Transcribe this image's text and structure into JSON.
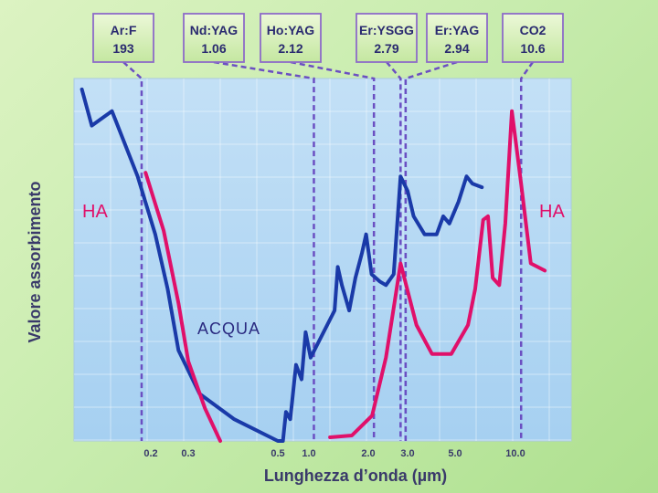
{
  "chart_data": {
    "type": "line",
    "xlabel": "Lunghezza d’onda (µm)",
    "ylabel": "Valore assorbimento",
    "x_ticks": [
      "0.2",
      "0.3",
      "0.5",
      "1.0",
      "2.0",
      "3.0",
      "5.0",
      "10.0"
    ],
    "annotations": [
      {
        "name": "ha_left",
        "text": "HA"
      },
      {
        "name": "ha_right",
        "text": "HA"
      },
      {
        "name": "acqua",
        "text": "ACQUA"
      }
    ],
    "lasers": [
      {
        "name": "Ar:F",
        "value": "193",
        "wavelength_um": 0.193
      },
      {
        "name": "Nd:YAG",
        "value": "1.06",
        "wavelength_um": 1.06
      },
      {
        "name": "Ho:YAG",
        "value": "2.12",
        "wavelength_um": 2.12
      },
      {
        "name": "Er:YSGG",
        "value": "2.79",
        "wavelength_um": 2.79
      },
      {
        "name": "Er:YAG",
        "value": "2.94",
        "wavelength_um": 2.94
      },
      {
        "name": "CO2",
        "value": "10.6",
        "wavelength_um": 10.6
      }
    ],
    "series": [
      {
        "color": "#1a3aa8",
        "points": [
          [
            0.153,
            0.97
          ],
          [
            0.159,
            0.87
          ],
          [
            0.172,
            0.91
          ],
          [
            0.19,
            0.73
          ],
          [
            0.21,
            0.57
          ],
          [
            0.24,
            0.42
          ],
          [
            0.27,
            0.25
          ],
          [
            0.32,
            0.13
          ],
          [
            0.39,
            0.06
          ],
          [
            0.5,
            0.0
          ],
          [
            0.56,
            0.0
          ],
          [
            0.6,
            0.08
          ],
          [
            0.66,
            0.06
          ],
          [
            0.75,
            0.21
          ],
          [
            0.85,
            0.17
          ],
          [
            0.93,
            0.3
          ],
          [
            1.02,
            0.23
          ],
          [
            1.35,
            0.36
          ],
          [
            1.4,
            0.48
          ],
          [
            1.47,
            0.43
          ],
          [
            1.6,
            0.36
          ],
          [
            1.72,
            0.45
          ],
          [
            1.86,
            0.52
          ],
          [
            1.95,
            0.57
          ],
          [
            2.07,
            0.46
          ],
          [
            2.25,
            0.44
          ],
          [
            2.4,
            0.43
          ],
          [
            2.6,
            0.46
          ],
          [
            2.79,
            0.73
          ],
          [
            3.0,
            0.69
          ],
          [
            3.2,
            0.62
          ],
          [
            3.6,
            0.57
          ],
          [
            4.1,
            0.57
          ],
          [
            4.4,
            0.62
          ],
          [
            4.7,
            0.6
          ],
          [
            5.2,
            0.66
          ],
          [
            5.7,
            0.73
          ],
          [
            6.1,
            0.71
          ],
          [
            6.8,
            0.7
          ]
        ]
      },
      {
        "color": "#e0106a",
        "points": [
          [
            0.196,
            0.74
          ],
          [
            0.23,
            0.58
          ],
          [
            0.27,
            0.38
          ],
          [
            0.3,
            0.22
          ],
          [
            0.33,
            0.09
          ],
          [
            0.36,
            0.0
          ]
        ]
      },
      {
        "color": "#e0106a",
        "points": [
          [
            1.28,
            0.01
          ],
          [
            1.65,
            0.015
          ],
          [
            2.08,
            0.07
          ],
          [
            2.4,
            0.23
          ],
          [
            2.62,
            0.38
          ],
          [
            2.79,
            0.49
          ],
          [
            3.3,
            0.32
          ],
          [
            3.9,
            0.24
          ],
          [
            4.8,
            0.24
          ],
          [
            5.8,
            0.32
          ],
          [
            6.3,
            0.42
          ],
          [
            6.9,
            0.61
          ],
          [
            7.3,
            0.62
          ],
          [
            7.7,
            0.45
          ],
          [
            8.3,
            0.43
          ],
          [
            8.9,
            0.6
          ],
          [
            9.6,
            0.91
          ],
          [
            10.6,
            0.71
          ],
          [
            11.7,
            0.49
          ],
          [
            13.5,
            0.47
          ]
        ]
      }
    ]
  }
}
